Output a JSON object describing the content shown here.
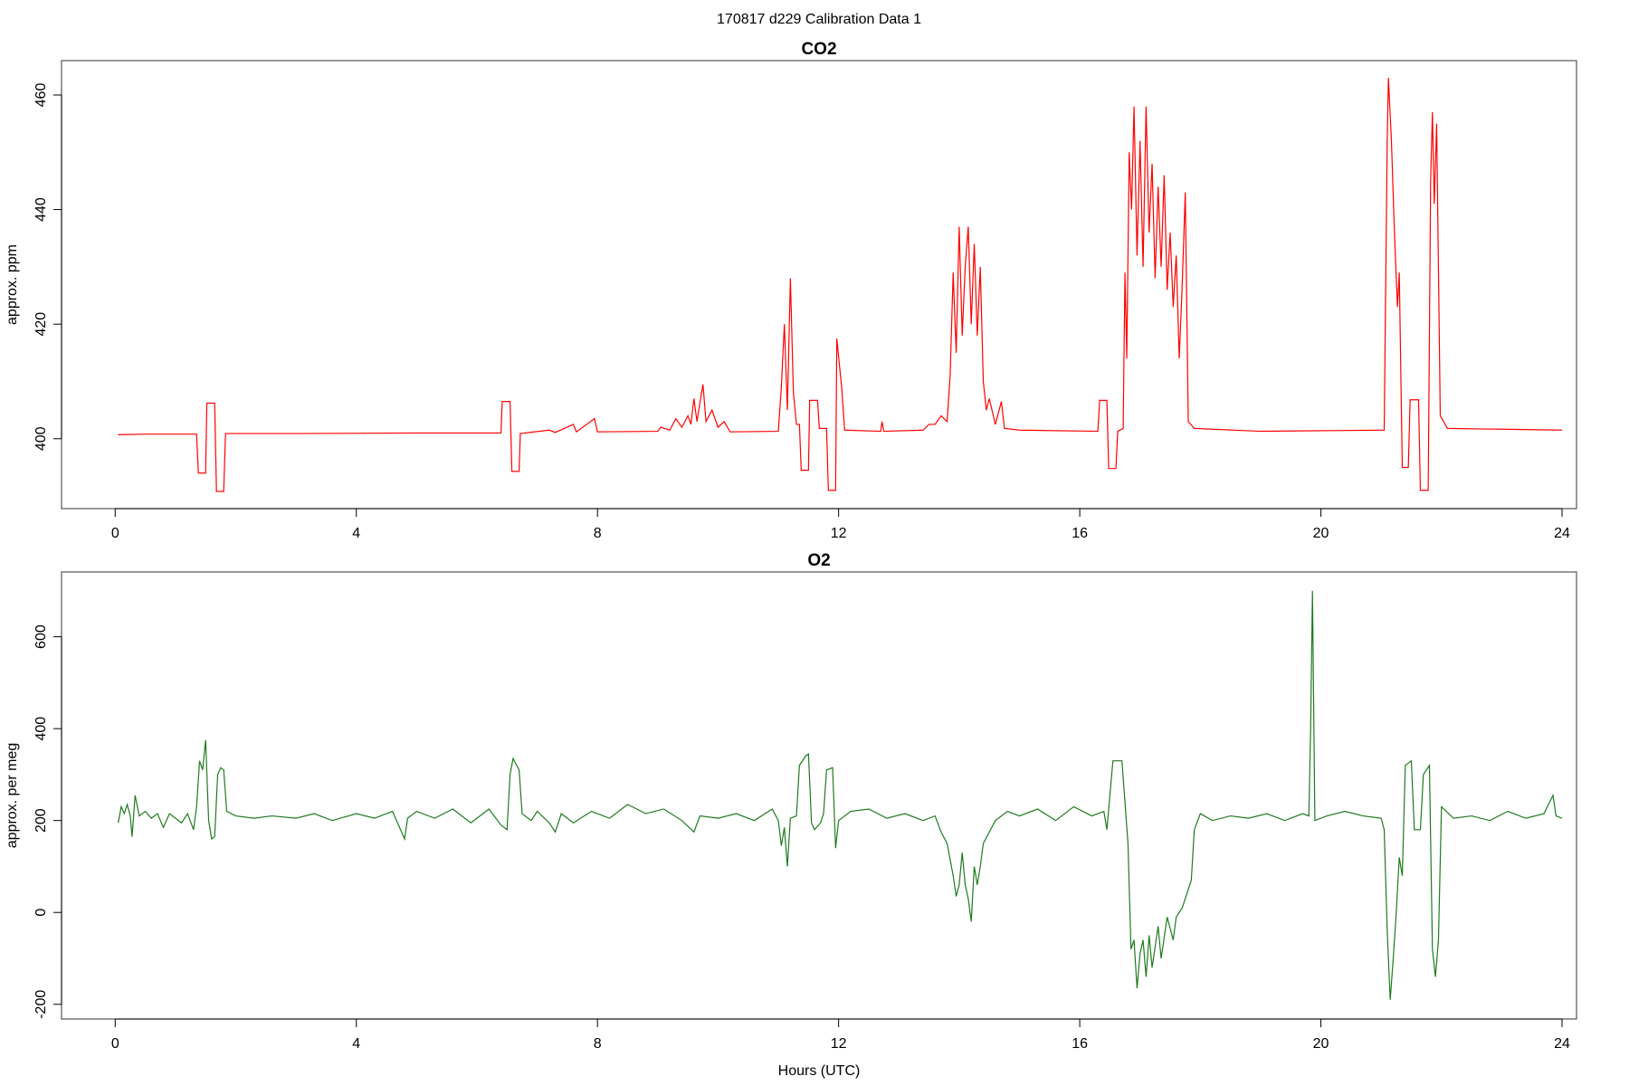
{
  "title": "170817   d229   Calibration Data 1",
  "x_label": "Hours (UTC)",
  "chart_data": [
    {
      "type": "line",
      "title": "CO2",
      "y_label": "approx. ppm",
      "xlim": [
        -0.89,
        24.24
      ],
      "ylim": [
        387.8,
        466.0
      ],
      "xticks": [
        0,
        4,
        8,
        12,
        16,
        20,
        24
      ],
      "yticks": [
        400,
        420,
        440,
        460
      ],
      "x": [
        0.05,
        0.5,
        1.0,
        1.35,
        1.38,
        1.5,
        1.52,
        1.65,
        1.68,
        1.8,
        1.83,
        3,
        5,
        6.4,
        6.42,
        6.55,
        6.58,
        6.7,
        6.72,
        7.2,
        7.3,
        7.6,
        7.65,
        7.95,
        8.0,
        9.0,
        9.05,
        9.2,
        9.3,
        9.4,
        9.5,
        9.55,
        9.6,
        9.65,
        9.75,
        9.8,
        9.9,
        10.0,
        10.1,
        10.2,
        11.0,
        11.05,
        11.1,
        11.15,
        11.2,
        11.25,
        11.3,
        11.35,
        11.38,
        11.5,
        11.52,
        11.65,
        11.68,
        11.8,
        11.83,
        11.95,
        11.97,
        12.05,
        12.1,
        12.7,
        12.72,
        12.75,
        13.4,
        13.5,
        13.6,
        13.7,
        13.8,
        13.85,
        13.9,
        13.95,
        14.0,
        14.05,
        14.1,
        14.15,
        14.2,
        14.25,
        14.3,
        14.35,
        14.4,
        14.45,
        14.5,
        14.6,
        14.7,
        14.75,
        15,
        16.3,
        16.33,
        16.45,
        16.48,
        16.6,
        16.63,
        16.72,
        16.75,
        16.78,
        16.82,
        16.86,
        16.9,
        16.95,
        17.0,
        17.05,
        17.1,
        17.15,
        17.2,
        17.25,
        17.3,
        17.35,
        17.4,
        17.45,
        17.5,
        17.55,
        17.6,
        17.65,
        17.7,
        17.75,
        17.8,
        17.9,
        19,
        21.05,
        21.1,
        21.12,
        21.17,
        21.22,
        21.27,
        21.3,
        21.35,
        21.45,
        21.48,
        21.62,
        21.65,
        21.78,
        21.82,
        21.85,
        21.88,
        21.92,
        21.98,
        22.1,
        24
      ],
      "series": [
        {
          "name": "CO2",
          "color": "#ff0000",
          "values": [
            400.7,
            400.8,
            400.8,
            400.8,
            394,
            394,
            406.2,
            406.2,
            390.8,
            390.8,
            400.9,
            400.9,
            401,
            401,
            406.5,
            406.5,
            394.3,
            394.3,
            400.9,
            401.5,
            401.1,
            402.5,
            401.2,
            403.5,
            401.2,
            401.3,
            402,
            401.5,
            403.5,
            402,
            404,
            402.5,
            407,
            403,
            409.5,
            403,
            405,
            402,
            403,
            401.2,
            401.3,
            409,
            420,
            405,
            428,
            408,
            402.5,
            402.5,
            394.5,
            394.5,
            406.7,
            406.7,
            401.8,
            401.8,
            391,
            391,
            417.5,
            409,
            401.5,
            401.3,
            403,
            401.3,
            401.5,
            402.5,
            402.5,
            404,
            403,
            411,
            429,
            415,
            437,
            418,
            430,
            437,
            420,
            434,
            418,
            430,
            410,
            405,
            407,
            402.5,
            406.5,
            401.8,
            401.5,
            401.3,
            406.7,
            406.7,
            394.8,
            394.8,
            401.3,
            401.8,
            429,
            414,
            450,
            440,
            458,
            432,
            452,
            430,
            458,
            436,
            448,
            428,
            444,
            430,
            446,
            426,
            436,
            423,
            432,
            414,
            427,
            443,
            403,
            401.8,
            401.3,
            401.5,
            452,
            463,
            452,
            436,
            423,
            429,
            395,
            395,
            406.8,
            406.8,
            391,
            391,
            445,
            457,
            441,
            455,
            404,
            401.8,
            401.5
          ]
        }
      ]
    },
    {
      "type": "line",
      "title": "O2",
      "y_label": "approx. per meg",
      "xlim": [
        -0.89,
        24.24
      ],
      "ylim": [
        -232,
        741
      ],
      "xticks": [
        0,
        4,
        8,
        12,
        16,
        20,
        24
      ],
      "yticks": [
        -200,
        0,
        200,
        400,
        600
      ],
      "x": [
        0.05,
        0.1,
        0.15,
        0.2,
        0.25,
        0.28,
        0.33,
        0.4,
        0.5,
        0.6,
        0.7,
        0.8,
        0.9,
        1.0,
        1.1,
        1.2,
        1.3,
        1.35,
        1.4,
        1.45,
        1.5,
        1.55,
        1.6,
        1.65,
        1.7,
        1.75,
        1.8,
        1.85,
        2.0,
        2.3,
        2.6,
        3.0,
        3.3,
        3.6,
        4.0,
        4.3,
        4.6,
        4.8,
        4.85,
        5.0,
        5.3,
        5.6,
        5.9,
        6.2,
        6.4,
        6.5,
        6.55,
        6.6,
        6.7,
        6.75,
        6.9,
        7.0,
        7.2,
        7.3,
        7.4,
        7.6,
        7.9,
        8.2,
        8.5,
        8.8,
        9.1,
        9.4,
        9.6,
        9.7,
        10.0,
        10.3,
        10.6,
        10.9,
        11.0,
        11.05,
        11.1,
        11.15,
        11.2,
        11.3,
        11.35,
        11.45,
        11.5,
        11.55,
        11.6,
        11.7,
        11.75,
        11.8,
        11.9,
        11.95,
        12.0,
        12.2,
        12.5,
        12.8,
        13.1,
        13.4,
        13.6,
        13.7,
        13.8,
        13.9,
        13.95,
        14.0,
        14.05,
        14.1,
        14.15,
        14.2,
        14.25,
        14.3,
        14.35,
        14.4,
        14.5,
        14.6,
        14.8,
        15.0,
        15.3,
        15.6,
        15.9,
        16.2,
        16.4,
        16.45,
        16.55,
        16.7,
        16.8,
        16.85,
        16.9,
        16.95,
        17.0,
        17.05,
        17.1,
        17.15,
        17.2,
        17.3,
        17.35,
        17.45,
        17.55,
        17.6,
        17.7,
        17.8,
        17.85,
        17.9,
        18.0,
        18.2,
        18.5,
        18.8,
        19.1,
        19.4,
        19.7,
        19.8,
        19.83,
        19.86,
        19.9,
        20.1,
        20.4,
        20.7,
        21.0,
        21.05,
        21.1,
        21.15,
        21.2,
        21.25,
        21.3,
        21.35,
        21.4,
        21.5,
        21.55,
        21.65,
        21.7,
        21.8,
        21.85,
        21.9,
        21.95,
        22.0,
        22.2,
        22.5,
        22.8,
        23.1,
        23.4,
        23.7,
        23.85,
        23.9,
        24
      ],
      "series": [
        {
          "name": "O2",
          "color": "#1f7a1f",
          "values": [
            195,
            230,
            215,
            235,
            210,
            165,
            255,
            210,
            220,
            205,
            215,
            185,
            215,
            205,
            195,
            215,
            180,
            230,
            330,
            310,
            375,
            200,
            160,
            165,
            300,
            315,
            310,
            220,
            210,
            205,
            210,
            205,
            215,
            200,
            215,
            205,
            220,
            160,
            205,
            220,
            205,
            225,
            195,
            225,
            190,
            180,
            300,
            335,
            310,
            215,
            200,
            220,
            195,
            175,
            215,
            195,
            220,
            205,
            235,
            215,
            225,
            200,
            175,
            210,
            205,
            215,
            200,
            225,
            200,
            145,
            185,
            100,
            205,
            210,
            320,
            340,
            345,
            195,
            180,
            195,
            215,
            310,
            315,
            140,
            200,
            220,
            225,
            205,
            215,
            200,
            210,
            175,
            150,
            80,
            35,
            60,
            130,
            60,
            30,
            -20,
            100,
            60,
            100,
            150,
            175,
            200,
            220,
            210,
            225,
            200,
            230,
            210,
            220,
            180,
            330,
            330,
            150,
            -80,
            -60,
            -165,
            -90,
            -60,
            -140,
            -50,
            -120,
            -30,
            -100,
            -10,
            -60,
            -10,
            10,
            50,
            70,
            180,
            215,
            200,
            210,
            205,
            215,
            200,
            215,
            210,
            400,
            700,
            200,
            210,
            220,
            210,
            205,
            180,
            -40,
            -190,
            -100,
            0,
            120,
            80,
            320,
            330,
            180,
            180,
            300,
            320,
            -80,
            -140,
            -60,
            230,
            205,
            210,
            200,
            220,
            205,
            215,
            255,
            210,
            205
          ]
        }
      ]
    }
  ]
}
